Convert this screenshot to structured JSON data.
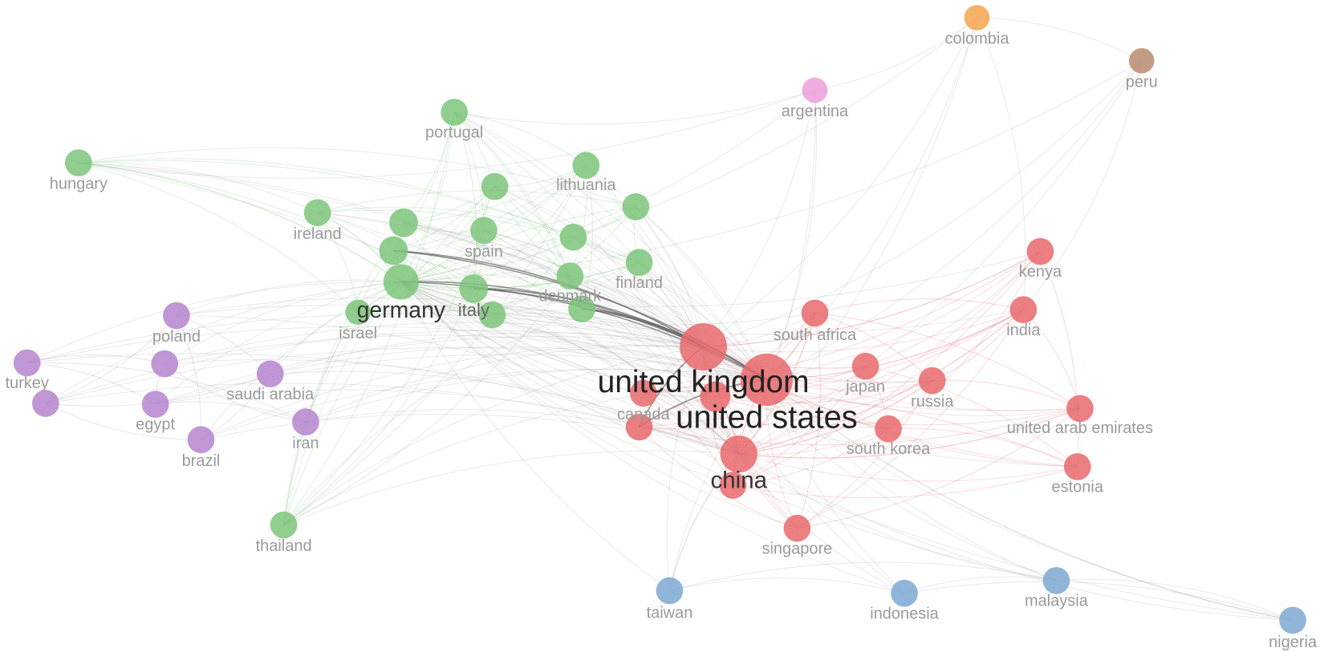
{
  "nodes": [
    {
      "label": "colombia",
      "color": "#f4a54d"
    },
    {
      "label": "peru",
      "color": "#b88a6e"
    },
    {
      "label": "argentina",
      "color": "#ec9ed8"
    },
    {
      "label": "portugal",
      "color": "#7cc47a"
    },
    {
      "label": "hungary",
      "color": "#7cc47a"
    },
    {
      "label": "lithuania",
      "color": "#7cc47a"
    },
    {
      "label": "ireland",
      "color": "#7cc47a"
    },
    {
      "label": "spain",
      "color": "#7cc47a"
    },
    {
      "label": "finland",
      "color": "#7cc47a"
    },
    {
      "label": "denmark",
      "color": "#7cc47a"
    },
    {
      "label": "germany",
      "color": "#7cc47a"
    },
    {
      "label": "italy",
      "color": "#7cc47a"
    },
    {
      "label": "israel",
      "color": "#7cc47a"
    },
    {
      "label": "poland",
      "color": "#b585cc"
    },
    {
      "label": "turkey",
      "color": "#b585cc"
    },
    {
      "label": "saudi arabia",
      "color": "#b585cc"
    },
    {
      "label": "egypt",
      "color": "#b585cc"
    },
    {
      "label": "brazil",
      "color": "#b585cc"
    },
    {
      "label": "iran",
      "color": "#b585cc"
    },
    {
      "label": "thailand",
      "color": "#7cc47a"
    },
    {
      "label": "south africa",
      "color": "#e8686c"
    },
    {
      "label": "kenya",
      "color": "#e8686c"
    },
    {
      "label": "india",
      "color": "#e8686c"
    },
    {
      "label": "united kingdom",
      "color": "#e8686c"
    },
    {
      "label": "united states",
      "color": "#e8686c"
    },
    {
      "label": "japan",
      "color": "#e8686c"
    },
    {
      "label": "russia",
      "color": "#e8686c"
    },
    {
      "label": "canada",
      "color": "#e8686c"
    },
    {
      "label": "united arab emirates",
      "color": "#e8686c"
    },
    {
      "label": "south korea",
      "color": "#e8686c"
    },
    {
      "label": "china",
      "color": "#e8686c"
    },
    {
      "label": "estonia",
      "color": "#e8686c"
    },
    {
      "label": "singapore",
      "color": "#e8686c"
    },
    {
      "label": "taiwan",
      "color": "#7ea8d2"
    },
    {
      "label": "indonesia",
      "color": "#7ea8d2"
    },
    {
      "label": "malaysia",
      "color": "#7ea8d2"
    },
    {
      "label": "nigeria",
      "color": "#7ea8d2"
    }
  ]
}
